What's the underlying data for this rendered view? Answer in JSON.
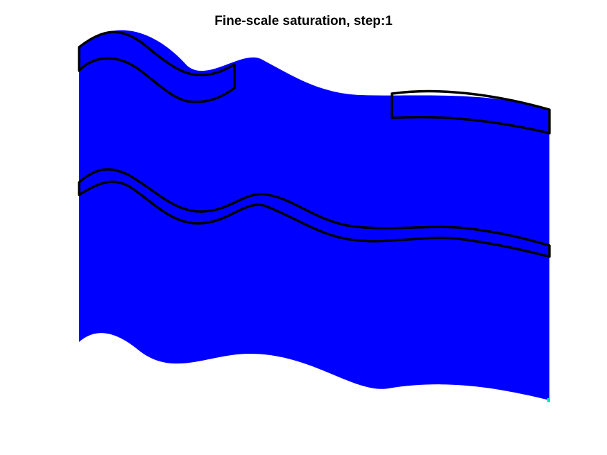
{
  "figure": {
    "title": "Fine-scale saturation, step:1"
  },
  "colors": {
    "background": "#ffffff",
    "domain_fill": "#0000ff",
    "outline": "#000000",
    "corner_cell": "#00e8b0"
  }
}
